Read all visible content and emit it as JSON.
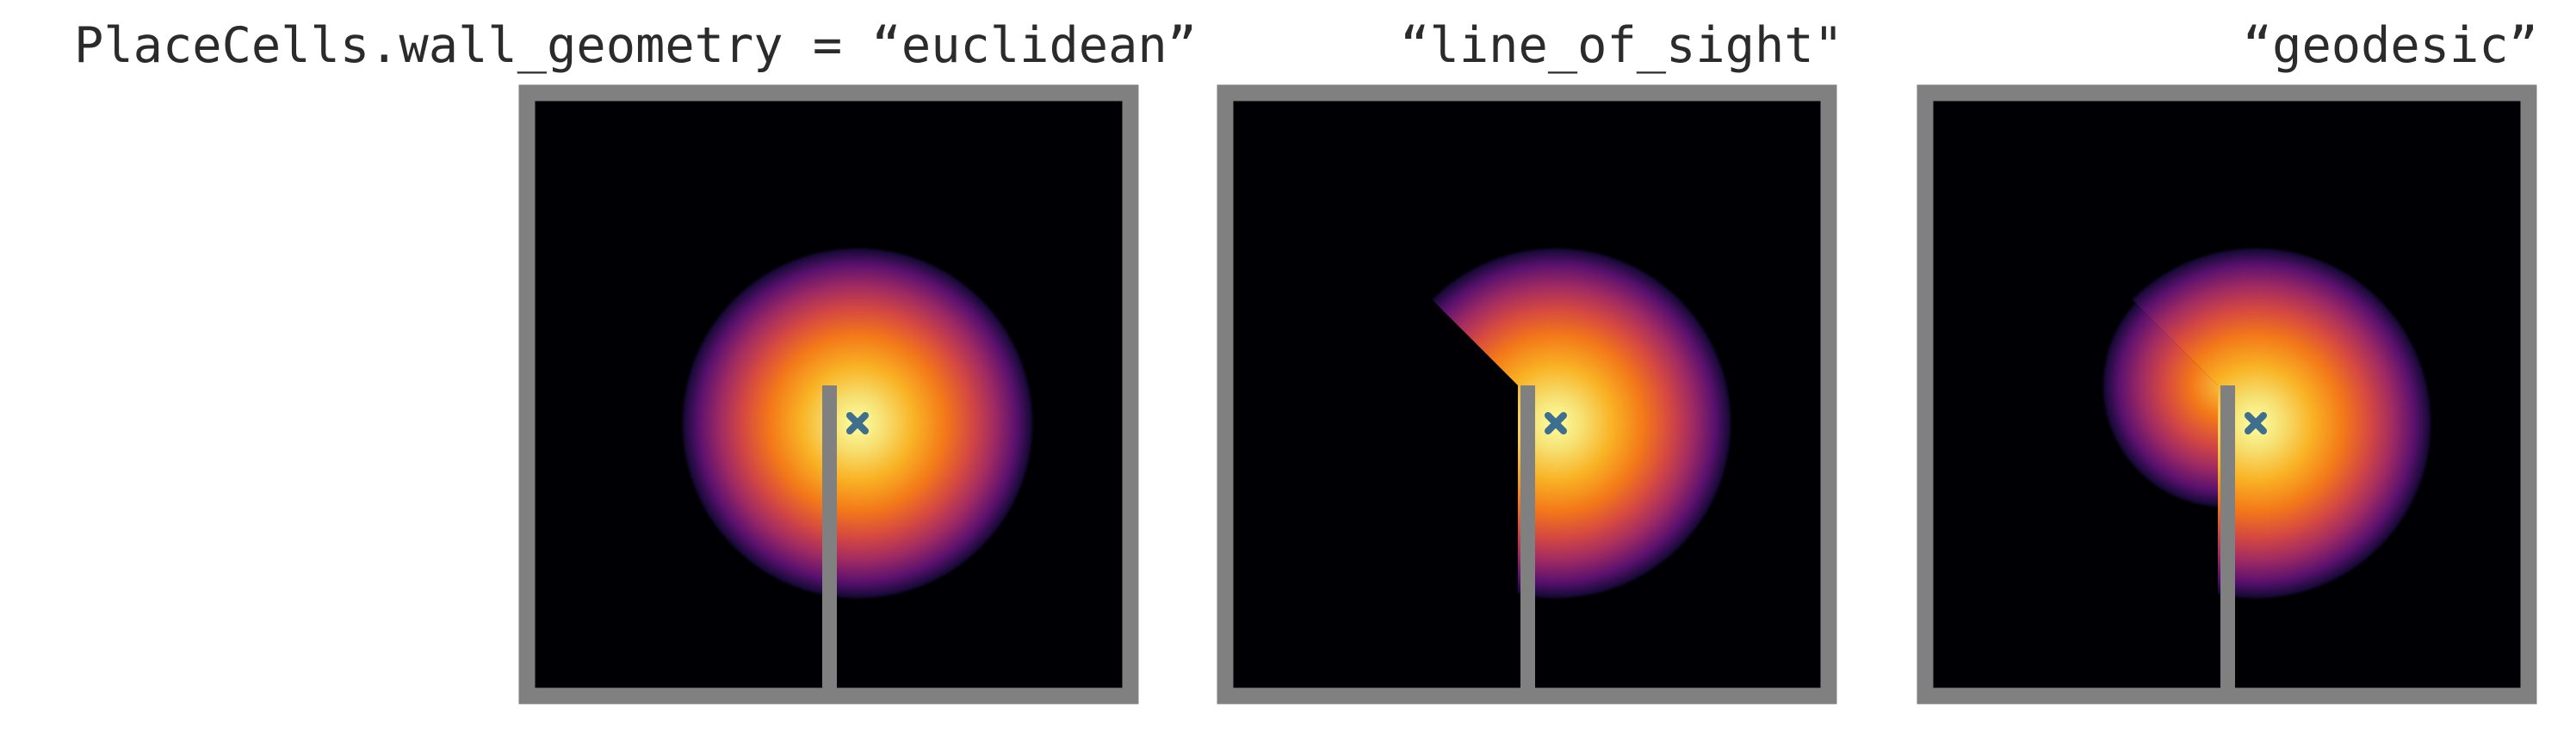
{
  "titles": [
    "PlaceCells.wall_geometry = “euclidean”",
    "“line_of_sight\"",
    "“geodesic”"
  ]
}
